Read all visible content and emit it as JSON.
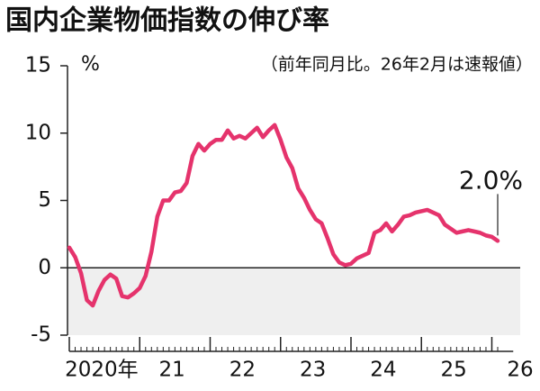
{
  "chart_data": {
    "type": "line",
    "title": "国内企業物価指数の伸び率",
    "subtitle": "（前年同月比。26年2月は速報値）",
    "y_unit": "%",
    "categories": [
      "2020年",
      null,
      null,
      null,
      null,
      null,
      null,
      null,
      null,
      null,
      null,
      null,
      "21",
      null,
      null,
      null,
      null,
      null,
      null,
      null,
      null,
      null,
      null,
      null,
      "22",
      null,
      null,
      null,
      null,
      null,
      null,
      null,
      null,
      null,
      null,
      null,
      "23",
      null,
      null,
      null,
      null,
      null,
      null,
      null,
      null,
      null,
      null,
      null,
      "24",
      null,
      null,
      null,
      null,
      null,
      null,
      null,
      null,
      null,
      null,
      null,
      "25",
      null,
      null,
      null,
      null,
      null,
      null,
      null,
      null,
      null,
      null,
      null,
      "26",
      null
    ],
    "values": [
      1.5,
      0.8,
      -0.4,
      -2.4,
      -2.8,
      -1.7,
      -0.9,
      -0.5,
      -0.8,
      -2.1,
      -2.2,
      -1.9,
      -1.5,
      -0.6,
      1.2,
      3.8,
      5.0,
      5.0,
      5.6,
      5.7,
      6.3,
      8.3,
      9.2,
      8.7,
      9.2,
      9.5,
      9.5,
      10.2,
      9.6,
      9.8,
      9.6,
      10.0,
      10.4,
      9.7,
      10.2,
      10.6,
      9.5,
      8.2,
      7.4,
      5.9,
      5.2,
      4.3,
      3.6,
      3.3,
      2.2,
      1.0,
      0.4,
      0.2,
      0.3,
      0.7,
      0.9,
      1.1,
      2.6,
      2.8,
      3.3,
      2.7,
      3.2,
      3.8,
      3.9,
      4.1,
      4.2,
      4.3,
      4.1,
      3.9,
      3.2,
      2.9,
      2.6,
      2.7,
      2.8,
      2.7,
      2.6,
      2.4,
      2.3,
      2.0
    ],
    "value_labels": [
      null,
      null,
      null,
      null,
      null,
      null,
      null,
      null,
      null,
      null,
      null,
      null,
      null,
      null,
      null,
      null,
      null,
      null,
      null,
      null,
      null,
      null,
      null,
      null,
      null,
      null,
      null,
      null,
      null,
      null,
      null,
      null,
      null,
      null,
      null,
      null,
      null,
      null,
      null,
      null,
      null,
      null,
      null,
      null,
      null,
      null,
      null,
      null,
      null,
      null,
      null,
      null,
      null,
      null,
      null,
      null,
      null,
      null,
      null,
      null,
      null,
      null,
      null,
      null,
      null,
      null,
      null,
      null,
      null,
      null,
      null,
      null,
      null,
      "2.0%"
    ],
    "color": "#e5336c",
    "ylim": [
      -5,
      15
    ],
    "yticks": [
      -5,
      0,
      5,
      10,
      15
    ],
    "negative_shade": "#efefef"
  }
}
